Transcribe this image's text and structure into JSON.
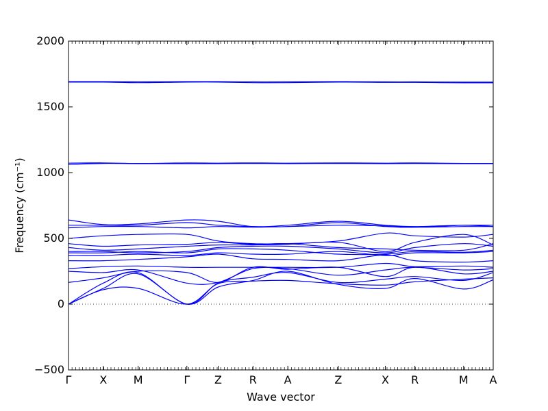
{
  "chart_data": {
    "type": "line",
    "title": "",
    "xlabel": "Wave vector",
    "ylabel": "Frequency (cm⁻¹)",
    "ylim": [
      -500,
      2000
    ],
    "y_ticks": [
      -500,
      0,
      500,
      1000,
      1500,
      2000
    ],
    "x_range": [
      0,
      12.2
    ],
    "x_ticks": [
      {
        "label": "Γ",
        "x": 0
      },
      {
        "label": "X",
        "x": 1.0
      },
      {
        "label": "M",
        "x": 2.0
      },
      {
        "label": "Γ",
        "x": 3.4
      },
      {
        "label": "Z",
        "x": 4.3
      },
      {
        "label": "R",
        "x": 5.3
      },
      {
        "label": "A",
        "x": 6.3
      },
      {
        "label": "Z",
        "x": 7.75
      },
      {
        "label": "X",
        "x": 9.1
      },
      {
        "label": "R",
        "x": 9.95
      },
      {
        "label": "M",
        "x": 11.35
      },
      {
        "label": "A",
        "x": 12.2
      }
    ],
    "zero_line": true,
    "line_color": "#0000ff",
    "band_samples_x": [
      0,
      1.0,
      2.0,
      3.4,
      4.3,
      5.3,
      6.3,
      7.75,
      9.1,
      9.95,
      11.35,
      12.2
    ],
    "series": [
      {
        "values": [
          0,
          160,
          240,
          0,
          160,
          205,
          240,
          165,
          190,
          210,
          180,
          240
        ]
      },
      {
        "values": [
          0,
          120,
          230,
          0,
          130,
          180,
          250,
          150,
          120,
          195,
          115,
          185
        ]
      },
      {
        "values": [
          0,
          110,
          120,
          0,
          155,
          175,
          180,
          155,
          145,
          170,
          190,
          200
        ]
      },
      {
        "values": [
          165,
          200,
          250,
          240,
          165,
          280,
          265,
          280,
          210,
          280,
          230,
          250
        ]
      },
      {
        "values": [
          250,
          240,
          260,
          160,
          165,
          270,
          270,
          220,
          260,
          280,
          260,
          270
        ]
      },
      {
        "values": [
          270,
          285,
          290,
          280,
          280,
          280,
          280,
          280,
          310,
          285,
          290,
          280
        ]
      },
      {
        "values": [
          330,
          330,
          340,
          360,
          380,
          345,
          340,
          330,
          375,
          330,
          320,
          330
        ]
      },
      {
        "values": [
          370,
          370,
          380,
          370,
          390,
          380,
          380,
          400,
          370,
          390,
          390,
          400
        ]
      },
      {
        "values": [
          390,
          390,
          400,
          390,
          420,
          420,
          410,
          380,
          380,
          400,
          395,
          410
        ]
      },
      {
        "values": [
          400,
          400,
          390,
          400,
          430,
          440,
          440,
          420,
          390,
          430,
          460,
          440
        ]
      },
      {
        "values": [
          430,
          410,
          420,
          440,
          450,
          450,
          455,
          470,
          400,
          470,
          530,
          450
        ]
      },
      {
        "values": [
          460,
          440,
          450,
          455,
          470,
          455,
          460,
          430,
          420,
          410,
          410,
          460
        ]
      },
      {
        "values": [
          500,
          520,
          530,
          530,
          480,
          460,
          460,
          480,
          540,
          520,
          510,
          530
        ]
      },
      {
        "values": [
          580,
          590,
          590,
          580,
          590,
          585,
          590,
          600,
          595,
          585,
          590,
          590
        ]
      },
      {
        "values": [
          600,
          600,
          600,
          620,
          600,
          590,
          590,
          620,
          590,
          585,
          600,
          600
        ]
      },
      {
        "values": [
          640,
          605,
          610,
          640,
          630,
          590,
          600,
          630,
          600,
          590,
          600,
          590
        ]
      },
      {
        "values": [
          1062,
          1070,
          1068,
          1068,
          1068,
          1070,
          1068,
          1070,
          1068,
          1070,
          1068,
          1068
        ]
      },
      {
        "values": [
          1072,
          1074,
          1070,
          1074,
          1072,
          1074,
          1072,
          1074,
          1072,
          1074,
          1070,
          1070
        ]
      },
      {
        "values": [
          1688,
          1688,
          1684,
          1688,
          1688,
          1684,
          1684,
          1688,
          1686,
          1686,
          1683,
          1683
        ]
      },
      {
        "values": [
          1692,
          1692,
          1690,
          1692,
          1692,
          1690,
          1690,
          1692,
          1690,
          1690,
          1688,
          1688
        ]
      }
    ]
  }
}
